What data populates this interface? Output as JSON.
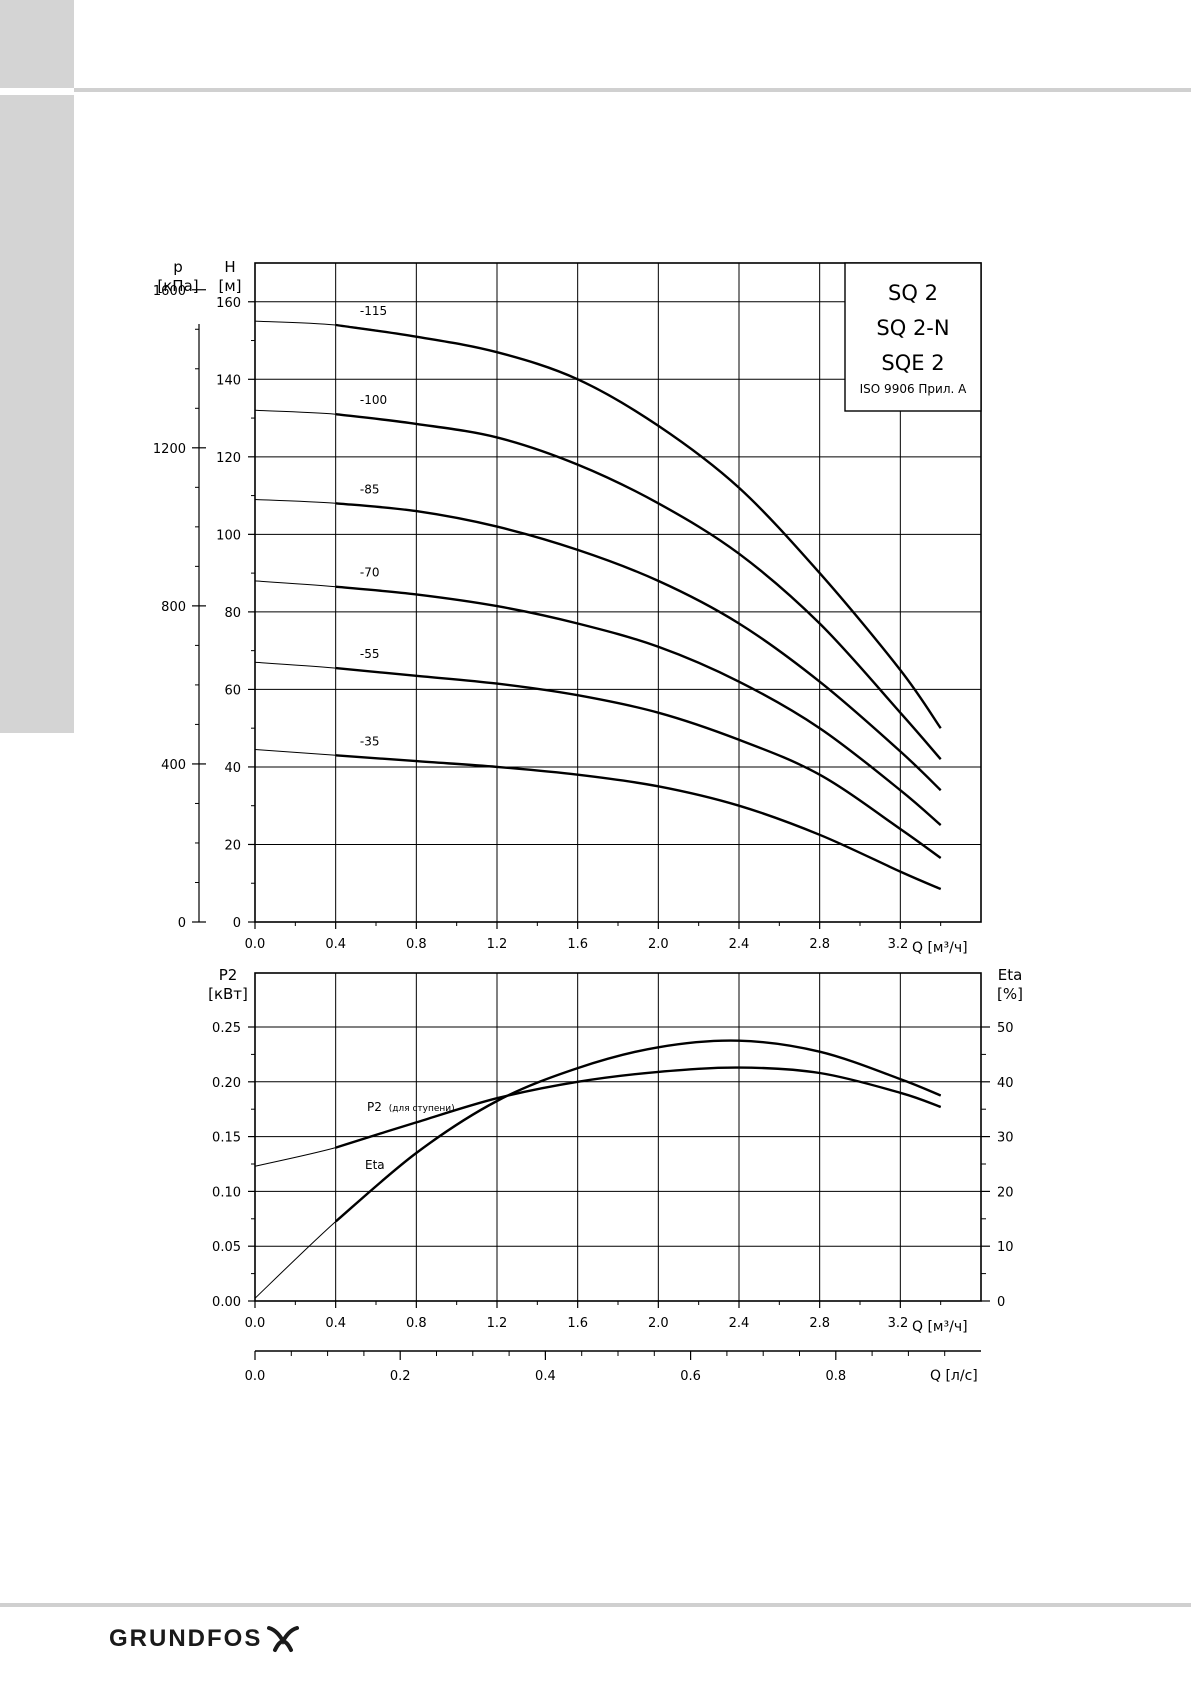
{
  "chart_data": [
    {
      "type": "line",
      "title": "",
      "x_axis": {
        "label": "Q [м³/ч]",
        "range": [
          0,
          3.6
        ],
        "ticks": [
          "0.0",
          "0.4",
          "0.8",
          "1.2",
          "1.6",
          "2.0",
          "2.4",
          "2.8",
          "3.2"
        ]
      },
      "y_axis_left": {
        "label_top": "H",
        "label_unit": "[м]",
        "range": [
          0,
          170
        ],
        "ticks": [
          "0",
          "20",
          "40",
          "60",
          "80",
          "100",
          "120",
          "140",
          "160"
        ]
      },
      "y_axis_outer": {
        "label_top": "p",
        "label_unit": "[кПа]",
        "range": [
          0,
          1667
        ],
        "ticks": [
          "0",
          "400",
          "800",
          "1200",
          "1600"
        ],
        "tick_values": [
          0,
          400,
          800,
          1200,
          1600
        ]
      },
      "legend_box": {
        "lines": [
          "SQ 2",
          "SQ 2-N",
          "SQE 2"
        ],
        "note": "ISO 9906 Прил. A",
        "position": "top-right"
      },
      "grid": true,
      "series": [
        {
          "name": "-115",
          "x": [
            0,
            0.4,
            0.8,
            1.2,
            1.6,
            2.0,
            2.4,
            2.8,
            3.2,
            3.4
          ],
          "y": [
            155,
            154,
            151,
            147,
            140,
            128,
            112,
            90,
            65,
            50
          ]
        },
        {
          "name": "-100",
          "x": [
            0,
            0.4,
            0.8,
            1.2,
            1.6,
            2.0,
            2.4,
            2.8,
            3.2,
            3.4
          ],
          "y": [
            132,
            131,
            128.5,
            125,
            118,
            108,
            95,
            77,
            54,
            42
          ]
        },
        {
          "name": "-85",
          "x": [
            0,
            0.4,
            0.8,
            1.2,
            1.6,
            2.0,
            2.4,
            2.8,
            3.2,
            3.4
          ],
          "y": [
            109,
            108,
            106,
            102,
            96,
            88,
            77,
            62,
            44,
            34
          ]
        },
        {
          "name": "-70",
          "x": [
            0,
            0.4,
            0.8,
            1.2,
            1.6,
            2.0,
            2.4,
            2.8,
            3.2,
            3.4
          ],
          "y": [
            88,
            86.5,
            84.5,
            81.5,
            77,
            71,
            62,
            50,
            34,
            25
          ]
        },
        {
          "name": "-55",
          "x": [
            0,
            0.4,
            0.8,
            1.2,
            1.6,
            2.0,
            2.4,
            2.8,
            3.2,
            3.4
          ],
          "y": [
            67,
            65.5,
            63.5,
            61.5,
            58.5,
            54,
            47,
            38,
            24,
            16.5
          ]
        },
        {
          "name": "-35",
          "x": [
            0,
            0.4,
            0.8,
            1.2,
            1.6,
            2.0,
            2.4,
            2.8,
            3.2,
            3.4
          ],
          "y": [
            44.5,
            43,
            41.5,
            40,
            38,
            35,
            30,
            22.5,
            13,
            8.5
          ]
        }
      ]
    },
    {
      "type": "line",
      "title": "",
      "x_axis": {
        "label": "Q [м³/ч]",
        "range": [
          0,
          3.6
        ],
        "ticks": [
          "0.0",
          "0.4",
          "0.8",
          "1.2",
          "1.6",
          "2.0",
          "2.4",
          "2.8",
          "3.2"
        ]
      },
      "y_axis_left": {
        "label_top": "P2",
        "label_unit": "[кВт]",
        "range": [
          0,
          0.25
        ],
        "ticks": [
          "0.00",
          "0.05",
          "0.10",
          "0.15",
          "0.20",
          "0.25"
        ]
      },
      "y_axis_right": {
        "label_top": "Eta",
        "label_unit": "[%]",
        "range": [
          0,
          50
        ],
        "ticks": [
          "0",
          "10",
          "20",
          "30",
          "40",
          "50"
        ]
      },
      "secondary_x_axis": {
        "label": "Q [л/с]",
        "range": [
          0,
          1.0
        ],
        "ticks": [
          "0.0",
          "0.2",
          "0.4",
          "0.6",
          "0.8"
        ],
        "tick_values": [
          0,
          0.2,
          0.4,
          0.6,
          0.8
        ]
      },
      "grid": true,
      "series": [
        {
          "name": "P2",
          "label": "P2",
          "label_sub": "(для ступени)",
          "axis": "left",
          "x": [
            0,
            0.4,
            0.8,
            1.2,
            1.6,
            2.0,
            2.4,
            2.8,
            3.2,
            3.4
          ],
          "y": [
            0.123,
            0.14,
            0.163,
            0.185,
            0.2,
            0.209,
            0.213,
            0.208,
            0.19,
            0.177
          ]
        },
        {
          "name": "Eta",
          "label": "Eta",
          "axis": "right",
          "x": [
            0,
            0.4,
            0.8,
            1.2,
            1.6,
            2.0,
            2.4,
            2.8,
            3.2,
            3.4
          ],
          "y": [
            0.5,
            14.5,
            27,
            36.5,
            42.5,
            46.3,
            47.5,
            45.5,
            40.5,
            37.5
          ]
        }
      ]
    }
  ],
  "footer": {
    "logo_text": "GRUNDFOS"
  }
}
